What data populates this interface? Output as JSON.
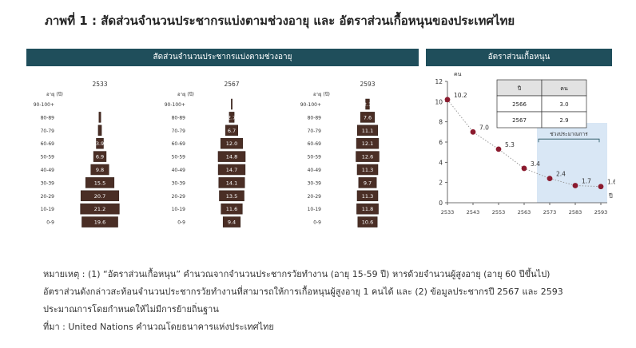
{
  "title": "ภาพที่ 1 : สัดส่วนจำนวนประชากรแบ่งตามช่วงอายุ และ อัตราส่วนเกื้อหนุนของประเทศไทย",
  "left_panel_title": "สัดส่วนจำนวนประชากรแบ่งตามช่วงอายุ",
  "right_panel_title": "อัตราส่วนเกื้อหนุน",
  "colors": {
    "header_bg": "#1f4e5b",
    "bar": "#4a2e25",
    "bar_outline": "#2e1b15",
    "point": "#8b1a2e",
    "line": "#9a9a9a",
    "shade": "#d9e7f5",
    "table_header": "#e2e2e2"
  },
  "chart_data": [
    {
      "type": "bar",
      "subtype": "population-pyramid",
      "ylabel": "อายุ (ปี)",
      "categories": [
        "90-100+",
        "80-89",
        "70-79",
        "60-69",
        "50-59",
        "40-49",
        "30-39",
        "20-29",
        "10-19",
        "0-9"
      ],
      "series": [
        {
          "name": "2533",
          "values": [
            null,
            1.0,
            1.8,
            3.9,
            6.9,
            9.8,
            15.5,
            20.7,
            21.2,
            19.6
          ],
          "labels": [
            "",
            "",
            "",
            "3.9",
            "6.9",
            "9.8",
            "15.5",
            "20.7",
            "21.2",
            "19.6"
          ]
        },
        {
          "name": "2567",
          "values": [
            0.4,
            2.7,
            6.7,
            12.0,
            14.8,
            14.7,
            14.1,
            13.5,
            11.6,
            9.4
          ],
          "labels": [
            "",
            "2.7",
            "6.7",
            "12.0",
            "14.8",
            "14.7",
            "14.1",
            "13.5",
            "11.6",
            "9.4"
          ]
        },
        {
          "name": "2593",
          "values": [
            2.1,
            7.6,
            11.1,
            12.1,
            12.6,
            11.3,
            9.7,
            11.3,
            11.8,
            10.6
          ],
          "labels": [
            "2.1",
            "7.6",
            "11.1",
            "12.1",
            "12.6",
            "11.3",
            "9.7",
            "11.3",
            "11.8",
            "10.6"
          ]
        }
      ]
    },
    {
      "type": "line",
      "ylabel": "คน",
      "xlabel": "ปี",
      "x": [
        "2533",
        "2543",
        "2553",
        "2563",
        "2573",
        "2583",
        "2593"
      ],
      "ylim": [
        0,
        12
      ],
      "yticks": [
        "0",
        "2",
        "4",
        "6",
        "8",
        "10",
        "12"
      ],
      "points": [
        {
          "x": 2533,
          "y": 10.2,
          "label": "10.2"
        },
        {
          "x": 2543,
          "y": 7.0,
          "label": "7.0"
        },
        {
          "x": 2553,
          "y": 5.3,
          "label": "5.3"
        },
        {
          "x": 2563,
          "y": 3.4,
          "label": "3.4"
        },
        {
          "x": 2573,
          "y": 2.4,
          "label": "2.4"
        },
        {
          "x": 2583,
          "y": 1.7,
          "label": "1.7"
        },
        {
          "x": 2593,
          "y": 1.6,
          "label": "1.6"
        }
      ],
      "shaded_region": {
        "x_from": 2568,
        "x_to": 2593,
        "label": "ช่วงประมาณการ"
      },
      "table": {
        "headers": [
          "ปี",
          "คน"
        ],
        "rows": [
          [
            "2566",
            "3.0"
          ],
          [
            "2567",
            "2.9"
          ]
        ]
      }
    }
  ],
  "notes": [
    "หมายเหตุ : (1) “อัตราส่วนเกื้อหนุน” คำนวณจากจำนวนประชากรวัยทำงาน (อายุ 15-59 ปี) หารด้วยจำนวนผู้สูงอายุ (อายุ 60 ปีขึ้นไป)",
    "อัตราส่วนดังกล่าวสะท้อนจำนวนประชากรวัยทำงานที่สามารถให้การเกื้อหนุนผู้สูงอายุ 1 คนได้ และ (2) ข้อมูลประชากรปี 2567 และ 2593",
    "ประมาณการโดยกำหนดให้ไม่มีการย้ายถิ่นฐาน",
    "ที่มา : United Nations คำนวณโดยธนาคารแห่งประเทศไทย"
  ]
}
